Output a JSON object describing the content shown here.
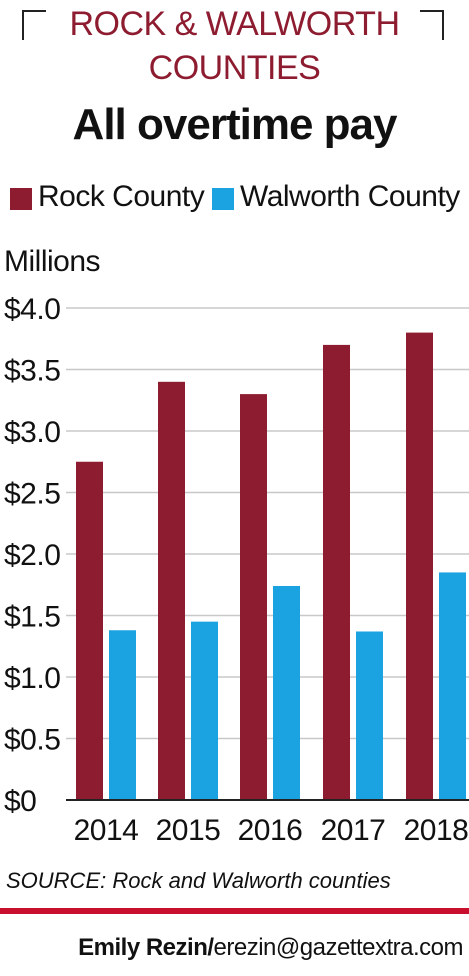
{
  "header": {
    "kicker_line1": "ROCK & WALWORTH",
    "kicker_line2": "COUNTIES",
    "title": "All overtime pay"
  },
  "chart_data": {
    "type": "bar",
    "title": "All overtime pay",
    "ylabel": "Millions",
    "xlabel": "",
    "categories": [
      "2014",
      "2015",
      "2016",
      "2017",
      "2018"
    ],
    "series": [
      {
        "name": "Rock County",
        "color": "#8e1c30",
        "values": [
          2.75,
          3.4,
          3.3,
          3.7,
          3.8
        ]
      },
      {
        "name": "Walworth County",
        "color": "#1aa3e0",
        "values": [
          1.38,
          1.45,
          1.74,
          1.37,
          1.85
        ]
      }
    ],
    "ylim": [
      0,
      4.0
    ],
    "yticks": [
      0,
      0.5,
      1.0,
      1.5,
      2.0,
      2.5,
      3.0,
      3.5,
      4.0
    ],
    "ytick_labels": [
      "$0",
      "$0.5",
      "$1.0",
      "$1.5",
      "$2.0",
      "$2.5",
      "$3.0",
      "$3.5",
      "$4.0"
    ],
    "grid": true,
    "legend_position": "top-left"
  },
  "footer": {
    "source": "SOURCE: Rock and Walworth counties",
    "credit_name": "Emily Rezin/",
    "credit_email": "erezin@gazettextra.com"
  }
}
